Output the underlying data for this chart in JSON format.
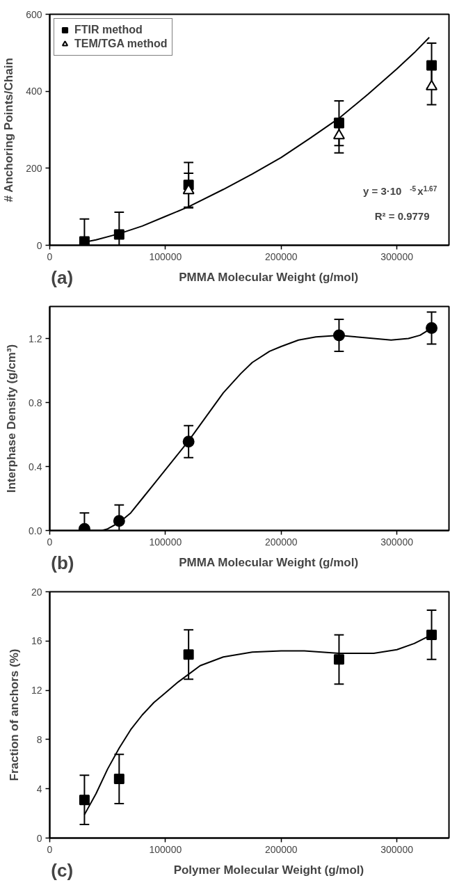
{
  "chart_data": [
    {
      "type": "scatter",
      "xlabel": "PMMA Molecular Weight (g/mol)",
      "ylabel": "# Anchoring Points/Chain",
      "xlim": [
        0,
        345000
      ],
      "xticks": [
        0,
        100000,
        200000,
        300000
      ],
      "ylim": [
        0,
        600
      ],
      "yticks": [
        0,
        200,
        400,
        600
      ],
      "grid": false,
      "legend": "top left",
      "annotations": [
        "(a)",
        "y = 3·10$^{-5}$x$^{1.67}$",
        "R² = 0.9779"
      ],
      "series": [
        {
          "name": "FTIR method",
          "marker": "square",
          "color": "#000000",
          "x": [
            30000,
            60000,
            120000,
            250000,
            330000
          ],
          "values": [
            10,
            28,
            157,
            317,
            467
          ],
          "errors": [
            [
              0,
              68
            ],
            [
              0,
              86
            ],
            58,
            58,
            58
          ]
        },
        {
          "name": "TEM/TGA method",
          "marker": "triangle_open",
          "color": "#000000",
          "x": [
            120000,
            250000,
            330000
          ],
          "values": [
            142,
            285,
            412
          ],
          "errors": [
            45,
            45,
            47
          ]
        },
        {
          "type": "line",
          "color": "#000000",
          "x": [
            30000,
            40000,
            60000,
            80000,
            100000,
            120000,
            150000,
            175000,
            200000,
            225000,
            250000,
            275000,
            300000,
            315000,
            328000
          ],
          "values": [
            8,
            14,
            30,
            50,
            75,
            100,
            145,
            185,
            228,
            278,
            330,
            392,
            458,
            500,
            540
          ]
        }
      ]
    },
    {
      "type": "scatter",
      "xlabel": "PMMA Molecular Weight (g/mol)",
      "ylabel": "Interphase Density (g/cm³)",
      "xlim": [
        0,
        345000
      ],
      "xticks": [
        0,
        100000,
        200000,
        300000
      ],
      "ylim": [
        0,
        1.4
      ],
      "yticks": [
        {
          "value": 0,
          "label": "0.0"
        },
        0.4,
        0.8,
        1.2
      ],
      "grid": false,
      "annotations": [
        "(b)"
      ],
      "series": [
        {
          "marker": "circle",
          "color": "#000000",
          "x": [
            30000,
            60000,
            120000,
            250000,
            330000
          ],
          "values": [
            0.01,
            0.06,
            0.555,
            1.22,
            1.265
          ],
          "errors": [
            [
              0,
              0.11
            ],
            [
              0,
              0.16
            ],
            0.1,
            0.1,
            0.1
          ]
        },
        {
          "type": "line",
          "color": "#000000",
          "x": [
            30000,
            45000,
            50000,
            60000,
            70000,
            80000,
            90000,
            100000,
            110000,
            120000,
            135000,
            150000,
            165000,
            175000,
            190000,
            200000,
            215000,
            230000,
            250000,
            265000,
            280000,
            295000,
            310000,
            320000,
            330000
          ],
          "values": [
            0,
            0,
            0.01,
            0.05,
            0.11,
            0.2,
            0.29,
            0.38,
            0.47,
            0.56,
            0.71,
            0.86,
            0.98,
            1.05,
            1.12,
            1.15,
            1.19,
            1.21,
            1.22,
            1.21,
            1.2,
            1.19,
            1.2,
            1.22,
            1.265
          ]
        }
      ]
    },
    {
      "type": "scatter",
      "xlabel": "Polymer Molecular Weight (g/mol)",
      "ylabel": "Fraction of anchors (%)",
      "xlim": [
        0,
        345000
      ],
      "xticks": [
        0,
        100000,
        200000,
        300000
      ],
      "ylim": [
        0,
        20
      ],
      "yticks": [
        0,
        4,
        8,
        12,
        16,
        20
      ],
      "grid": false,
      "annotations": [
        "(c)"
      ],
      "series": [
        {
          "marker": "square",
          "color": "#000000",
          "x": [
            30000,
            60000,
            120000,
            250000,
            330000
          ],
          "values": [
            3.1,
            4.8,
            14.9,
            14.5,
            16.5
          ],
          "errors": [
            2,
            2,
            2,
            2,
            2
          ]
        },
        {
          "type": "line",
          "color": "#000000",
          "x": [
            30000,
            40000,
            50000,
            60000,
            70000,
            80000,
            90000,
            100000,
            110000,
            120000,
            130000,
            150000,
            175000,
            200000,
            220000,
            250000,
            280000,
            300000,
            315000,
            330000
          ],
          "values": [
            1.9,
            3.6,
            5.6,
            7.3,
            8.8,
            10.0,
            11.0,
            11.8,
            12.6,
            13.3,
            14.0,
            14.7,
            15.1,
            15.2,
            15.2,
            15.0,
            15.0,
            15.3,
            15.8,
            16.5
          ]
        }
      ]
    }
  ]
}
